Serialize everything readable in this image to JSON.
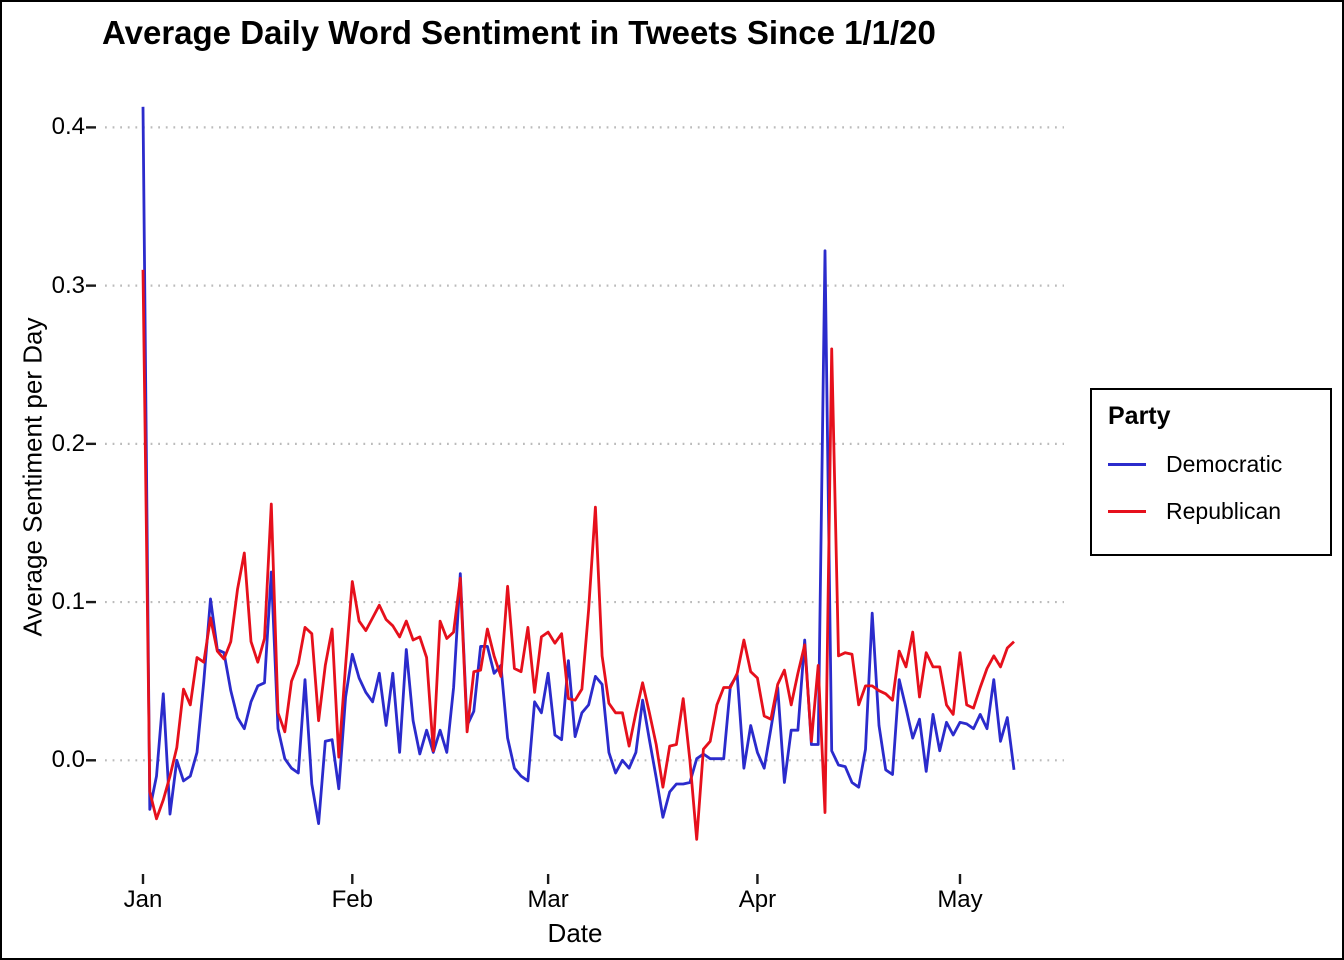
{
  "title": "Average Daily Word Sentiment in Tweets Since 1/1/20",
  "axes": {
    "x_label": "Date",
    "y_label": "Average Sentiment per Day",
    "x_tick_labels": [
      "Jan",
      "Feb",
      "Mar",
      "Apr",
      "May"
    ],
    "y_tick_labels": [
      "0.0",
      "0.1",
      "0.2",
      "0.3",
      "0.4"
    ]
  },
  "legend": {
    "title": "Party",
    "items": [
      {
        "label": "Democratic",
        "color": "#2B2BCC"
      },
      {
        "label": "Republican",
        "color": "#E6101C"
      }
    ]
  },
  "chart_data": {
    "type": "line",
    "title": "Average Daily Word Sentiment in Tweets Since 1/1/20",
    "xlabel": "Date",
    "ylabel": "Average Sentiment per Day",
    "x_unit": "days since 2020-01-01",
    "x_ticks": [
      {
        "label": "Jan",
        "day": 0
      },
      {
        "label": "Feb",
        "day": 31
      },
      {
        "label": "Mar",
        "day": 60
      },
      {
        "label": "Apr",
        "day": 91
      },
      {
        "label": "May",
        "day": 121
      }
    ],
    "y_ticks": [
      0.0,
      0.1,
      0.2,
      0.3,
      0.4
    ],
    "ylim": [
      -0.065,
      0.43
    ],
    "grid": "horizontal-dotted",
    "grid_color": "#BBBBBB",
    "tick_color": "#1A1A1A",
    "legend_position": "right",
    "series": [
      {
        "name": "Democratic",
        "color": "#2B2BCC",
        "values": [
          0.413,
          -0.031,
          -0.01,
          0.042,
          -0.034,
          0.0,
          -0.013,
          -0.01,
          0.005,
          0.05,
          0.102,
          0.07,
          0.068,
          0.044,
          0.027,
          0.02,
          0.037,
          0.047,
          0.049,
          0.119,
          0.02,
          0.001,
          -0.005,
          -0.008,
          0.051,
          -0.015,
          -0.04,
          0.012,
          0.013,
          -0.018,
          0.04,
          0.067,
          0.052,
          0.043,
          0.037,
          0.055,
          0.022,
          0.055,
          0.005,
          0.07,
          0.025,
          0.004,
          0.019,
          0.005,
          0.019,
          0.005,
          0.046,
          0.118,
          0.022,
          0.031,
          0.072,
          0.072,
          0.055,
          0.06,
          0.014,
          -0.005,
          -0.01,
          -0.013,
          0.037,
          0.03,
          0.055,
          0.016,
          0.013,
          0.063,
          0.015,
          0.03,
          0.035,
          0.053,
          0.048,
          0.005,
          -0.008,
          0.0,
          -0.005,
          0.005,
          0.038,
          0.013,
          -0.011,
          -0.036,
          -0.02,
          -0.015,
          -0.015,
          -0.014,
          0.001,
          0.004,
          0.001,
          0.001,
          0.001,
          0.047,
          0.054,
          -0.005,
          0.022,
          0.005,
          -0.005,
          0.02,
          0.046,
          -0.014,
          0.019,
          0.019,
          0.076,
          0.01,
          0.01,
          0.322,
          0.006,
          -0.003,
          -0.004,
          -0.014,
          -0.017,
          0.007,
          0.093,
          0.022,
          -0.006,
          -0.009,
          0.051,
          0.033,
          0.014,
          0.026,
          -0.007,
          0.029,
          0.006,
          0.024,
          0.016,
          0.024,
          0.023,
          0.02,
          0.029,
          0.02,
          0.051,
          0.012,
          0.027,
          -0.006
        ]
      },
      {
        "name": "Republican",
        "color": "#E6101C",
        "values": [
          0.31,
          -0.02,
          -0.037,
          -0.025,
          -0.01,
          0.008,
          0.045,
          0.035,
          0.065,
          0.062,
          0.09,
          0.069,
          0.064,
          0.075,
          0.108,
          0.131,
          0.075,
          0.062,
          0.077,
          0.162,
          0.03,
          0.018,
          0.05,
          0.061,
          0.084,
          0.08,
          0.025,
          0.06,
          0.083,
          0.002,
          0.06,
          0.113,
          0.088,
          0.082,
          0.09,
          0.098,
          0.089,
          0.085,
          0.078,
          0.088,
          0.076,
          0.078,
          0.065,
          0.006,
          0.088,
          0.077,
          0.081,
          0.115,
          0.018,
          0.056,
          0.057,
          0.083,
          0.066,
          0.053,
          0.11,
          0.058,
          0.056,
          0.084,
          0.043,
          0.078,
          0.081,
          0.074,
          0.08,
          0.039,
          0.038,
          0.045,
          0.095,
          0.16,
          0.066,
          0.036,
          0.03,
          0.03,
          0.009,
          0.03,
          0.049,
          0.03,
          0.01,
          -0.017,
          0.009,
          0.01,
          0.039,
          0.0,
          -0.05,
          0.007,
          0.012,
          0.035,
          0.046,
          0.046,
          0.055,
          0.076,
          0.056,
          0.052,
          0.028,
          0.026,
          0.048,
          0.057,
          0.035,
          0.055,
          0.073,
          0.012,
          0.06,
          -0.033,
          0.26,
          0.066,
          0.068,
          0.067,
          0.035,
          0.047,
          0.047,
          0.044,
          0.042,
          0.038,
          0.069,
          0.059,
          0.081,
          0.04,
          0.068,
          0.059,
          0.059,
          0.035,
          0.029,
          0.068,
          0.035,
          0.033,
          0.046,
          0.058,
          0.066,
          0.059,
          0.071,
          0.075
        ]
      }
    ]
  }
}
